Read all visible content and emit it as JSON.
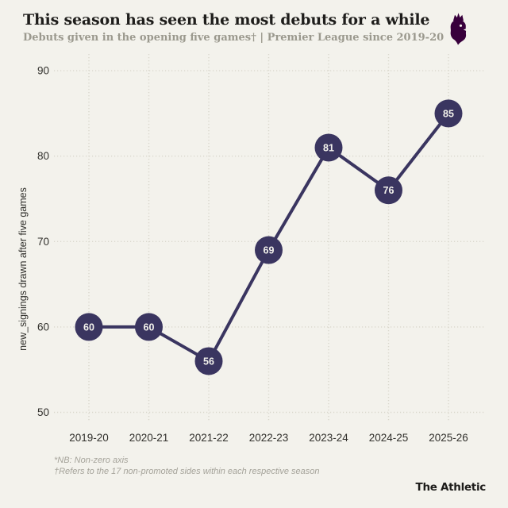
{
  "header": {
    "title": "This season has seen the most debuts for a while",
    "subtitle": "Debuts given in the opening five games† | Premier League since 2019-20",
    "logo_icon": "premier-league-lion-crest"
  },
  "chart_data": {
    "type": "line",
    "title": "This season has seen the most debuts for a while",
    "categories": [
      "2019-20",
      "2020-21",
      "2021-22",
      "2022-23",
      "2023-24",
      "2024-25",
      "2025-26"
    ],
    "values": [
      60,
      60,
      56,
      69,
      81,
      76,
      85
    ],
    "series_name": "debuts given in the opening five games",
    "xlabel": "",
    "ylabel": "new_signings drawn after five games",
    "ylim": [
      50,
      90
    ],
    "yticks": [
      50,
      60,
      70,
      80,
      90
    ],
    "grid": "dotted",
    "point_labels_visible": true,
    "legend": "none"
  },
  "footnotes": [
    "*NB: Non-zero axis",
    "†Refers to the 17 non-promoted sides within each respective season"
  ],
  "branding": "The Athletic",
  "colors": {
    "background": "#f3f2ec",
    "title_text": "#1e1d1b",
    "subtitle_text": "#9b998e",
    "line_and_points": "#3a3560",
    "point_label_text": "#f3f2ec",
    "gridline": "#d9d7cc",
    "axis_text": "#31302c",
    "footnote_text": "#a5a39a",
    "premier_league_purple": "#38003c",
    "wordmark_text": "#1d1c1a"
  }
}
